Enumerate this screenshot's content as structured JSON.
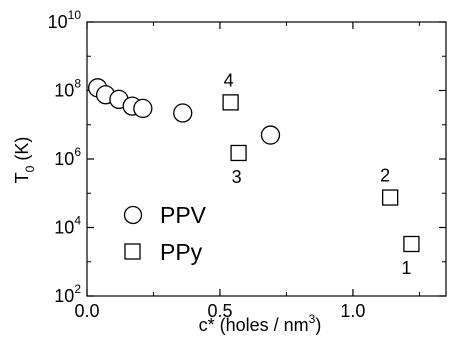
{
  "chart_data": {
    "type": "scatter",
    "xlabel": "c* (holes / nm",
    "xlabel_sup": "3",
    "xlabel_end": ")",
    "ylabel": "T",
    "ylabel_sub": "0",
    "ylabel_end": " (K)",
    "xlim": [
      0.0,
      1.35
    ],
    "ylim_log10": [
      2,
      10
    ],
    "y_scale": "log",
    "grid": false,
    "x_ticks": [
      {
        "value": 0.0,
        "label": "0.0"
      },
      {
        "value": 0.5,
        "label": "0.5"
      },
      {
        "value": 1.0,
        "label": "1.0"
      }
    ],
    "y_ticks": [
      {
        "exp": 2,
        "base": "10",
        "sup": "2"
      },
      {
        "exp": 4,
        "base": "10",
        "sup": "4"
      },
      {
        "exp": 6,
        "base": "10",
        "sup": "6"
      },
      {
        "exp": 8,
        "base": "10",
        "sup": "8"
      },
      {
        "exp": 10,
        "base": "10",
        "sup": "10"
      }
    ],
    "series": [
      {
        "name": "PPV",
        "marker": "circle",
        "points": [
          {
            "x": 0.04,
            "y": 120000000
          },
          {
            "x": 0.07,
            "y": 75000000
          },
          {
            "x": 0.12,
            "y": 55000000
          },
          {
            "x": 0.17,
            "y": 35000000
          },
          {
            "x": 0.21,
            "y": 30000000
          },
          {
            "x": 0.36,
            "y": 22000000
          },
          {
            "x": 0.69,
            "y": 5000000
          }
        ]
      },
      {
        "name": "PPy",
        "marker": "square",
        "points": [
          {
            "x": 0.54,
            "y": 45000000,
            "label": "4"
          },
          {
            "x": 0.57,
            "y": 1500000,
            "label": "3"
          },
          {
            "x": 1.14,
            "y": 75000,
            "label": "2"
          },
          {
            "x": 1.22,
            "y": 3300,
            "label": "1"
          }
        ]
      }
    ],
    "legend_position": "bottom-left"
  }
}
